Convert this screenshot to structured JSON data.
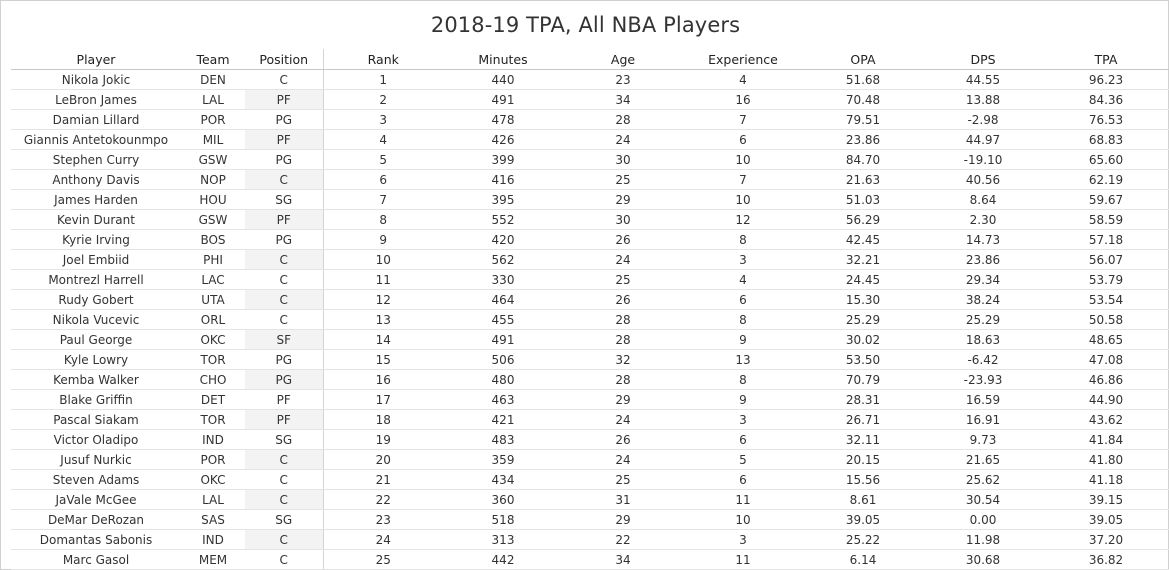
{
  "title": "2018-19 TPA, All NBA Players",
  "columns": [
    "Player",
    "Team",
    "Position",
    "Rank",
    "Minutes",
    "Age",
    "Experience",
    "OPA",
    "DPS",
    "TPA"
  ],
  "rows": [
    {
      "player": "Nikola Jokic",
      "team": "DEN",
      "position": "C",
      "rank": "1",
      "minutes": "440",
      "age": "23",
      "experience": "4",
      "opa": "51.68",
      "dps": "44.55",
      "tpa": "96.23"
    },
    {
      "player": "LeBron James",
      "team": "LAL",
      "position": "PF",
      "rank": "2",
      "minutes": "491",
      "age": "34",
      "experience": "16",
      "opa": "70.48",
      "dps": "13.88",
      "tpa": "84.36"
    },
    {
      "player": "Damian Lillard",
      "team": "POR",
      "position": "PG",
      "rank": "3",
      "minutes": "478",
      "age": "28",
      "experience": "7",
      "opa": "79.51",
      "dps": "-2.98",
      "tpa": "76.53"
    },
    {
      "player": "Giannis Antetokounmpo",
      "team": "MIL",
      "position": "PF",
      "rank": "4",
      "minutes": "426",
      "age": "24",
      "experience": "6",
      "opa": "23.86",
      "dps": "44.97",
      "tpa": "68.83"
    },
    {
      "player": "Stephen Curry",
      "team": "GSW",
      "position": "PG",
      "rank": "5",
      "minutes": "399",
      "age": "30",
      "experience": "10",
      "opa": "84.70",
      "dps": "-19.10",
      "tpa": "65.60"
    },
    {
      "player": "Anthony Davis",
      "team": "NOP",
      "position": "C",
      "rank": "6",
      "minutes": "416",
      "age": "25",
      "experience": "7",
      "opa": "21.63",
      "dps": "40.56",
      "tpa": "62.19"
    },
    {
      "player": "James Harden",
      "team": "HOU",
      "position": "SG",
      "rank": "7",
      "minutes": "395",
      "age": "29",
      "experience": "10",
      "opa": "51.03",
      "dps": "8.64",
      "tpa": "59.67"
    },
    {
      "player": "Kevin Durant",
      "team": "GSW",
      "position": "PF",
      "rank": "8",
      "minutes": "552",
      "age": "30",
      "experience": "12",
      "opa": "56.29",
      "dps": "2.30",
      "tpa": "58.59"
    },
    {
      "player": "Kyrie Irving",
      "team": "BOS",
      "position": "PG",
      "rank": "9",
      "minutes": "420",
      "age": "26",
      "experience": "8",
      "opa": "42.45",
      "dps": "14.73",
      "tpa": "57.18"
    },
    {
      "player": "Joel Embiid",
      "team": "PHI",
      "position": "C",
      "rank": "10",
      "minutes": "562",
      "age": "24",
      "experience": "3",
      "opa": "32.21",
      "dps": "23.86",
      "tpa": "56.07"
    },
    {
      "player": "Montrezl Harrell",
      "team": "LAC",
      "position": "C",
      "rank": "11",
      "minutes": "330",
      "age": "25",
      "experience": "4",
      "opa": "24.45",
      "dps": "29.34",
      "tpa": "53.79"
    },
    {
      "player": "Rudy Gobert",
      "team": "UTA",
      "position": "C",
      "rank": "12",
      "minutes": "464",
      "age": "26",
      "experience": "6",
      "opa": "15.30",
      "dps": "38.24",
      "tpa": "53.54"
    },
    {
      "player": "Nikola Vucevic",
      "team": "ORL",
      "position": "C",
      "rank": "13",
      "minutes": "455",
      "age": "28",
      "experience": "8",
      "opa": "25.29",
      "dps": "25.29",
      "tpa": "50.58"
    },
    {
      "player": "Paul George",
      "team": "OKC",
      "position": "SF",
      "rank": "14",
      "minutes": "491",
      "age": "28",
      "experience": "9",
      "opa": "30.02",
      "dps": "18.63",
      "tpa": "48.65"
    },
    {
      "player": "Kyle Lowry",
      "team": "TOR",
      "position": "PG",
      "rank": "15",
      "minutes": "506",
      "age": "32",
      "experience": "13",
      "opa": "53.50",
      "dps": "-6.42",
      "tpa": "47.08"
    },
    {
      "player": "Kemba Walker",
      "team": "CHO",
      "position": "PG",
      "rank": "16",
      "minutes": "480",
      "age": "28",
      "experience": "8",
      "opa": "70.79",
      "dps": "-23.93",
      "tpa": "46.86"
    },
    {
      "player": "Blake Griffin",
      "team": "DET",
      "position": "PF",
      "rank": "17",
      "minutes": "463",
      "age": "29",
      "experience": "9",
      "opa": "28.31",
      "dps": "16.59",
      "tpa": "44.90"
    },
    {
      "player": "Pascal Siakam",
      "team": "TOR",
      "position": "PF",
      "rank": "18",
      "minutes": "421",
      "age": "24",
      "experience": "3",
      "opa": "26.71",
      "dps": "16.91",
      "tpa": "43.62"
    },
    {
      "player": "Victor Oladipo",
      "team": "IND",
      "position": "SG",
      "rank": "19",
      "minutes": "483",
      "age": "26",
      "experience": "6",
      "opa": "32.11",
      "dps": "9.73",
      "tpa": "41.84"
    },
    {
      "player": "Jusuf Nurkic",
      "team": "POR",
      "position": "C",
      "rank": "20",
      "minutes": "359",
      "age": "24",
      "experience": "5",
      "opa": "20.15",
      "dps": "21.65",
      "tpa": "41.80"
    },
    {
      "player": "Steven Adams",
      "team": "OKC",
      "position": "C",
      "rank": "21",
      "minutes": "434",
      "age": "25",
      "experience": "6",
      "opa": "15.56",
      "dps": "25.62",
      "tpa": "41.18"
    },
    {
      "player": "JaVale McGee",
      "team": "LAL",
      "position": "C",
      "rank": "22",
      "minutes": "360",
      "age": "31",
      "experience": "11",
      "opa": "8.61",
      "dps": "30.54",
      "tpa": "39.15"
    },
    {
      "player": "DeMar DeRozan",
      "team": "SAS",
      "position": "SG",
      "rank": "23",
      "minutes": "518",
      "age": "29",
      "experience": "10",
      "opa": "39.05",
      "dps": "0.00",
      "tpa": "39.05"
    },
    {
      "player": "Domantas Sabonis",
      "team": "IND",
      "position": "C",
      "rank": "24",
      "minutes": "313",
      "age": "22",
      "experience": "3",
      "opa": "25.22",
      "dps": "11.98",
      "tpa": "37.20"
    },
    {
      "player": "Marc Gasol",
      "team": "MEM",
      "position": "C",
      "rank": "25",
      "minutes": "442",
      "age": "34",
      "experience": "11",
      "opa": "6.14",
      "dps": "30.68",
      "tpa": "36.82"
    }
  ]
}
